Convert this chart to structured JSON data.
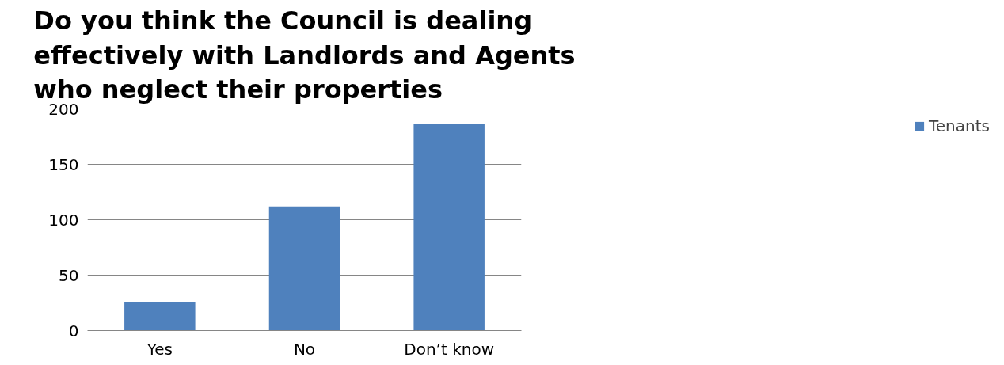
{
  "chart_data": {
    "type": "bar",
    "title": "Do you think the Council is dealing effectively with Landlords and Agents who neglect their properties",
    "categories": [
      "Yes",
      "No",
      "Don’t know"
    ],
    "series": [
      {
        "name": "Tenants",
        "color": "#4f81bd",
        "values": [
          26,
          112,
          186
        ]
      }
    ],
    "ylim": [
      0,
      200
    ],
    "yticks": [
      0,
      50,
      100,
      150,
      200
    ],
    "grid": "y",
    "legend": "right"
  }
}
